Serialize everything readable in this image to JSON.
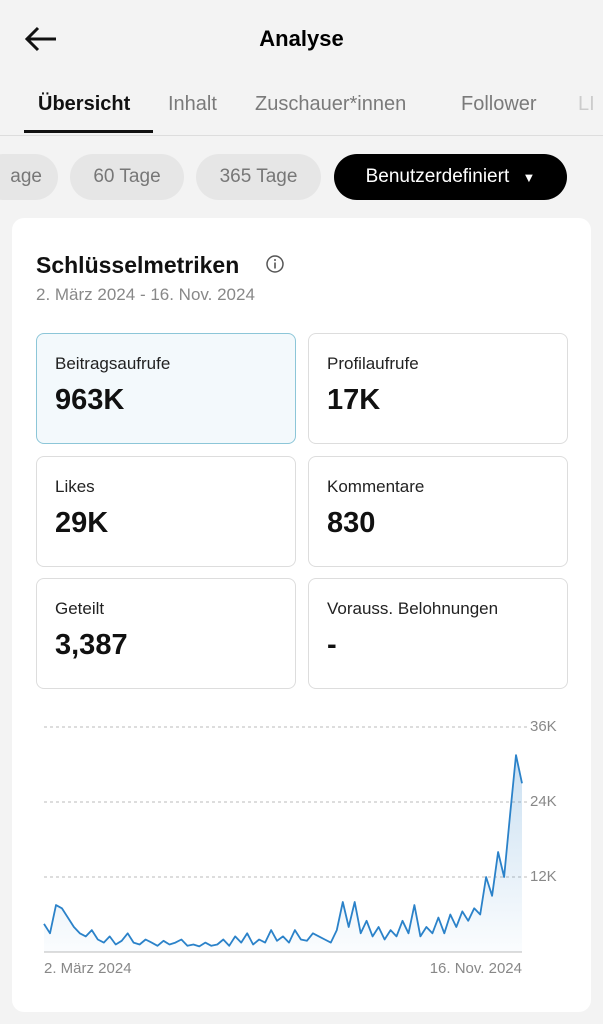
{
  "header": {
    "title": "Analyse"
  },
  "tabs": [
    "Übersicht",
    "Inhalt",
    "Zuschauer*innen",
    "Follower",
    "LI"
  ],
  "chips": [
    "age",
    "60 Tage",
    "365 Tage",
    "Benutzerdefiniert"
  ],
  "card": {
    "title": "Schlüsselmetriken",
    "date_range": "2. März 2024 - 16. Nov. 2024",
    "metrics": [
      {
        "label": "Beitragsaufrufe",
        "value": "963K"
      },
      {
        "label": "Profilaufrufe",
        "value": "17K"
      },
      {
        "label": "Likes",
        "value": "29K"
      },
      {
        "label": "Kommentare",
        "value": "830"
      },
      {
        "label": "Geteilt",
        "value": "3,387"
      },
      {
        "label": "Vorauss. Belohnungen",
        "value": "-"
      }
    ]
  },
  "chart_data": {
    "type": "line",
    "color": "#2b82c9",
    "categories": [
      "2. März 2024",
      null,
      null,
      null,
      null,
      null,
      null,
      null,
      null,
      null,
      null,
      null,
      null,
      null,
      null,
      null,
      null,
      null,
      null,
      null,
      null,
      null,
      null,
      null,
      null,
      null,
      null,
      null,
      null,
      null,
      null,
      null,
      null,
      null,
      null,
      null,
      null,
      null,
      null,
      null,
      null,
      null,
      null,
      null,
      null,
      null,
      null,
      null,
      null,
      null,
      null,
      null,
      null,
      null,
      null,
      null,
      null,
      null,
      null,
      null,
      null,
      null,
      null,
      null,
      null,
      null,
      null,
      null,
      null,
      null,
      null,
      null,
      null,
      null,
      null,
      null,
      null,
      null,
      null,
      null,
      "16. Nov. 2024"
    ],
    "values": [
      4500,
      3000,
      7500,
      7000,
      5500,
      4000,
      3000,
      2500,
      3500,
      2000,
      1500,
      2500,
      1200,
      1800,
      3000,
      1500,
      1200,
      2000,
      1500,
      1000,
      1800,
      1200,
      1500,
      2000,
      1000,
      1200,
      900,
      1500,
      1000,
      1200,
      2000,
      1000,
      2500,
      1500,
      3000,
      1200,
      2000,
      1500,
      3500,
      1800,
      2500,
      1500,
      3500,
      2000,
      1800,
      3000,
      2500,
      2000,
      1500,
      3500,
      8000,
      4000,
      8000,
      3000,
      5000,
      2500,
      4000,
      2000,
      3500,
      2500,
      5000,
      3000,
      7500,
      2500,
      4000,
      3000,
      5500,
      3000,
      6000,
      4000,
      6500,
      5000,
      7000,
      6000,
      12000,
      9000,
      16000,
      12000,
      22000,
      31500,
      27000
    ],
    "ylim": [
      0,
      36000
    ],
    "yticks": [
      {
        "value": 12000,
        "label": "12K"
      },
      {
        "value": 24000,
        "label": "24K"
      },
      {
        "value": 36000,
        "label": "36K"
      }
    ],
    "grid": true
  }
}
